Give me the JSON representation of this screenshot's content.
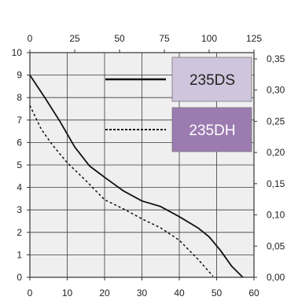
{
  "chart_data": {
    "type": "line",
    "title": "",
    "xlabel": "",
    "ylabel": "",
    "x_bottom": {
      "ticks": [
        0,
        10,
        20,
        30,
        40,
        50,
        60
      ],
      "range": [
        0,
        60
      ]
    },
    "x_top": {
      "ticks": [
        0,
        25,
        50,
        75,
        100,
        125
      ],
      "range": [
        0,
        125
      ]
    },
    "y_left": {
      "ticks": [
        0,
        1,
        2,
        3,
        4,
        5,
        6,
        7,
        8,
        9,
        10
      ],
      "range": [
        0,
        10
      ]
    },
    "y_right": {
      "ticks": [
        "0,00",
        "0,05",
        "0,10",
        "0,15",
        "0,20",
        "0,25",
        "0,30",
        "0,35"
      ],
      "values": [
        0,
        0.05,
        0.1,
        0.15,
        0.2,
        0.25,
        0.3,
        0.35
      ],
      "range": [
        0,
        0.36
      ]
    },
    "grid": true,
    "legend_position": "top-right",
    "series": [
      {
        "name": "235DS",
        "style": "solid",
        "color": "#111111",
        "legend_color": "#cfc6dd",
        "legend_text_color": "#222222",
        "x": [
          0,
          4,
          8,
          12,
          16,
          20,
          25,
          30,
          35,
          40,
          45,
          48,
          51,
          54,
          57
        ],
        "y": [
          9.0,
          8.0,
          6.95,
          5.8,
          4.95,
          4.45,
          3.85,
          3.4,
          3.15,
          2.7,
          2.2,
          1.8,
          1.2,
          0.5,
          0.0
        ]
      },
      {
        "name": "235DH",
        "style": "dashed",
        "color": "#111111",
        "legend_color": "#9b7bb0",
        "legend_text_color": "#ffffff",
        "x": [
          0,
          3,
          6,
          10,
          15,
          20,
          25,
          30,
          35,
          40,
          45,
          49
        ],
        "y": [
          7.65,
          6.6,
          5.9,
          5.1,
          4.3,
          3.45,
          3.05,
          2.6,
          2.2,
          1.65,
          0.8,
          0.05
        ]
      }
    ]
  }
}
